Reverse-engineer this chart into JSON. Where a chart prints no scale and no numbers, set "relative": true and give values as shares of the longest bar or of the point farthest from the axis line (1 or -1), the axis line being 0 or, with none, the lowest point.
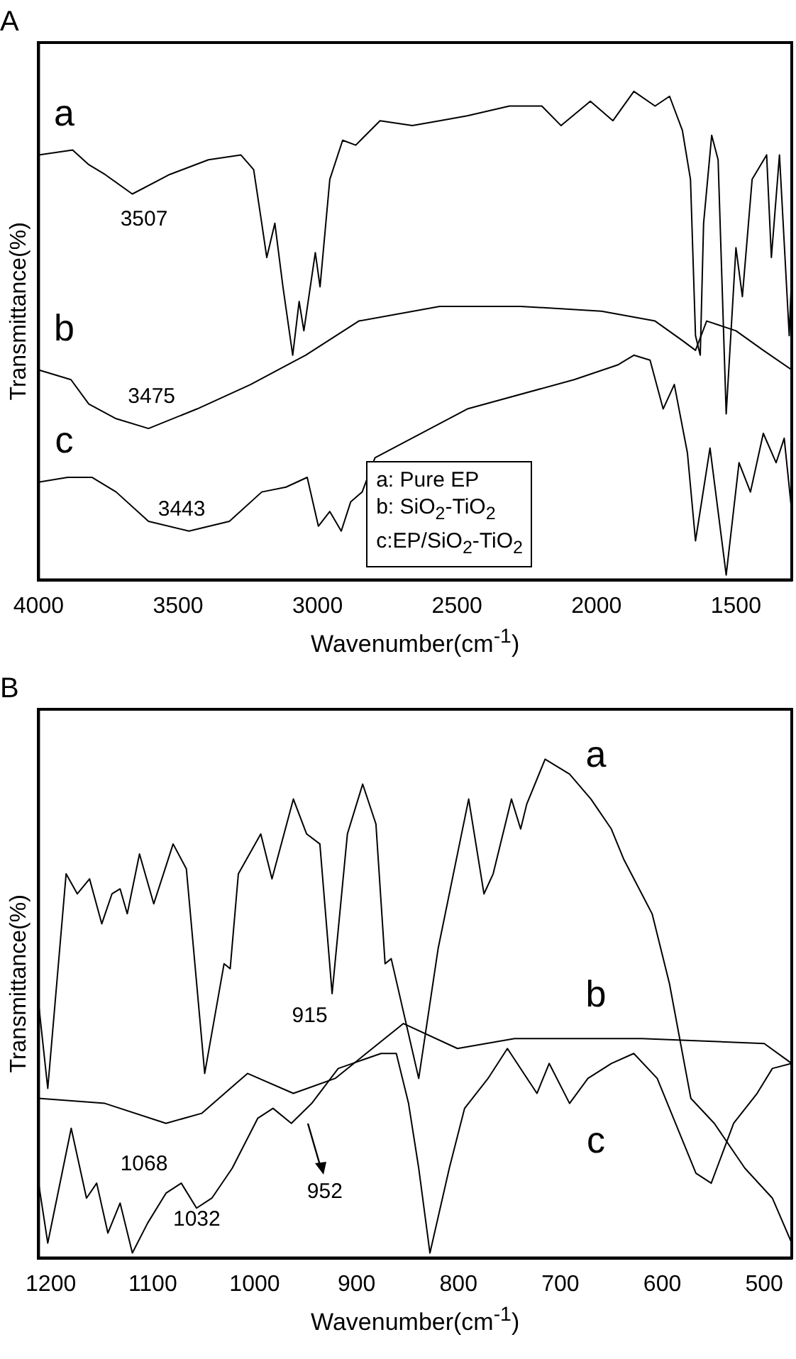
{
  "chart_data": [
    {
      "type": "line",
      "title": "A",
      "xlabel": "Wavenumber(cm$^{-1}$)",
      "ylabel": "Transmittance(%)",
      "relative": true,
      "xlim": [
        4000,
        1300
      ],
      "xticks": [
        4000,
        3500,
        3000,
        2500,
        2000,
        1500
      ],
      "grid": false,
      "legend": false,
      "marker": "none",
      "line_style": "solid",
      "annotations": [
        "3507",
        "3475",
        "3443",
        "a: Pure EP",
        "b: SiO$_{2}$-TiO$_{2}$",
        "c:EP/SiO$_{2}$-TiO$_{2}$"
      ],
      "series": [
        {
          "name": "a",
          "color": "#000000",
          "x": [
            4000,
            3878,
            3820,
            3762,
            3664,
            3530,
            3391,
            3275,
            3229,
            3200,
            3182,
            3153,
            3124,
            3089,
            3066,
            3049,
            3008,
            2991,
            2956,
            2910,
            2863,
            2776,
            2660,
            2562,
            2463,
            2312,
            2196,
            2127,
            2022,
            1941,
            1866,
            1790,
            1738,
            1692,
            1663,
            1645,
            1628,
            1616,
            1587,
            1564,
            1535,
            1500,
            1477,
            1442,
            1390,
            1373,
            1344,
            1309,
            1300
          ],
          "values": [
            0.87,
            0.88,
            0.85,
            0.83,
            0.79,
            0.83,
            0.86,
            0.87,
            0.84,
            0.73,
            0.66,
            0.73,
            0.6,
            0.46,
            0.57,
            0.51,
            0.67,
            0.6,
            0.82,
            0.9,
            0.89,
            0.94,
            0.93,
            0.94,
            0.95,
            0.97,
            0.97,
            0.93,
            0.98,
            0.94,
            1,
            0.97,
            0.99,
            0.92,
            0.82,
            0.5,
            0.46,
            0.73,
            0.91,
            0.86,
            0.34,
            0.68,
            0.58,
            0.82,
            0.87,
            0.66,
            0.87,
            0.5,
            0.63
          ]
        },
        {
          "name": "b",
          "color": "#000000",
          "x": [
            4000,
            3884,
            3820,
            3722,
            3606,
            3432,
            3240,
            3043,
            2852,
            2562,
            2272,
            1982,
            1790,
            1692,
            1645,
            1605,
            1500,
            1402,
            1300
          ],
          "values": [
            0.43,
            0.41,
            0.36,
            0.33,
            0.31,
            0.35,
            0.4,
            0.46,
            0.53,
            0.56,
            0.56,
            0.55,
            0.53,
            0.49,
            0.47,
            0.53,
            0.51,
            0.47,
            0.43
          ]
        },
        {
          "name": "c",
          "color": "#000000",
          "x": [
            4000,
            3896,
            3809,
            3722,
            3606,
            3461,
            3316,
            3200,
            3113,
            3037,
            2997,
            2956,
            2915,
            2881,
            2840,
            2794,
            2463,
            2080,
            1924,
            1866,
            1808,
            1761,
            1721,
            1674,
            1645,
            1593,
            1535,
            1489,
            1448,
            1402,
            1356,
            1327,
            1300
          ],
          "values": [
            0.2,
            0.21,
            0.21,
            0.18,
            0.12,
            0.1,
            0.12,
            0.18,
            0.19,
            0.21,
            0.11,
            0.14,
            0.1,
            0.16,
            0.18,
            0.25,
            0.35,
            0.41,
            0.44,
            0.46,
            0.45,
            0.35,
            0.4,
            0.26,
            0.08,
            0.27,
            0.01,
            0.24,
            0.18,
            0.3,
            0.24,
            0.29,
            0.14
          ]
        }
      ]
    },
    {
      "type": "line",
      "title": "B",
      "xlabel": "Wavenumber(cm$^{-1}$)",
      "ylabel": "Transmittance(%)",
      "relative": true,
      "xlim": [
        1212,
        473
      ],
      "xticks": [
        1200,
        1100,
        1000,
        900,
        800,
        700,
        600,
        500
      ],
      "grid": false,
      "legend": false,
      "marker": "none",
      "line_style": "solid",
      "annotations": [
        "915",
        "1068",
        "1032",
        "952"
      ],
      "series": [
        {
          "name": "a",
          "color": "#000000",
          "x": [
            1212,
            1203,
            1185,
            1174,
            1162,
            1150,
            1140,
            1132,
            1125,
            1113,
            1099,
            1080,
            1067,
            1049,
            1030,
            1024,
            1016,
            994,
            983,
            962,
            949,
            936,
            924,
            909,
            894,
            881,
            872,
            866,
            839,
            820,
            790,
            775,
            766,
            748,
            739,
            733,
            715,
            691,
            670,
            650,
            638,
            610,
            593,
            572,
            549,
            519,
            492,
            473
          ],
          "values": [
            0.51,
            0.34,
            0.77,
            0.73,
            0.76,
            0.67,
            0.73,
            0.74,
            0.69,
            0.81,
            0.71,
            0.83,
            0.78,
            0.37,
            0.59,
            0.58,
            0.77,
            0.85,
            0.76,
            0.92,
            0.85,
            0.83,
            0.53,
            0.85,
            0.95,
            0.87,
            0.59,
            0.6,
            0.36,
            0.62,
            0.92,
            0.73,
            0.77,
            0.92,
            0.86,
            0.91,
            1,
            0.97,
            0.92,
            0.86,
            0.8,
            0.69,
            0.55,
            0.32,
            0.27,
            0.18,
            0.12,
            0.03
          ]
        },
        {
          "name": "b",
          "color": "#000000",
          "x": [
            1212,
            1147,
            1087,
            1052,
            1007,
            962,
            921,
            854,
            801,
            745,
            620,
            500,
            473
          ],
          "values": [
            0.32,
            0.31,
            0.27,
            0.29,
            0.37,
            0.33,
            0.36,
            0.47,
            0.42,
            0.44,
            0.44,
            0.43,
            0.39
          ]
        },
        {
          "name": "c",
          "color": "#000000",
          "x": [
            1212,
            1203,
            1180,
            1165,
            1155,
            1144,
            1132,
            1120,
            1105,
            1087,
            1072,
            1057,
            1042,
            1022,
            997,
            982,
            964,
            944,
            918,
            876,
            861,
            849,
            839,
            828,
            809,
            794,
            771,
            752,
            723,
            711,
            691,
            673,
            650,
            628,
            605,
            583,
            567,
            552,
            530,
            507,
            492,
            473
          ],
          "values": [
            0.15,
            0.03,
            0.26,
            0.12,
            0.15,
            0.05,
            0.11,
            0.01,
            0.07,
            0.13,
            0.15,
            0.1,
            0.12,
            0.18,
            0.28,
            0.3,
            0.27,
            0.31,
            0.38,
            0.41,
            0.41,
            0.31,
            0.18,
            0.01,
            0.18,
            0.3,
            0.36,
            0.42,
            0.33,
            0.39,
            0.31,
            0.36,
            0.39,
            0.41,
            0.36,
            0.25,
            0.17,
            0.15,
            0.27,
            0.33,
            0.38,
            0.39
          ]
        }
      ]
    }
  ]
}
